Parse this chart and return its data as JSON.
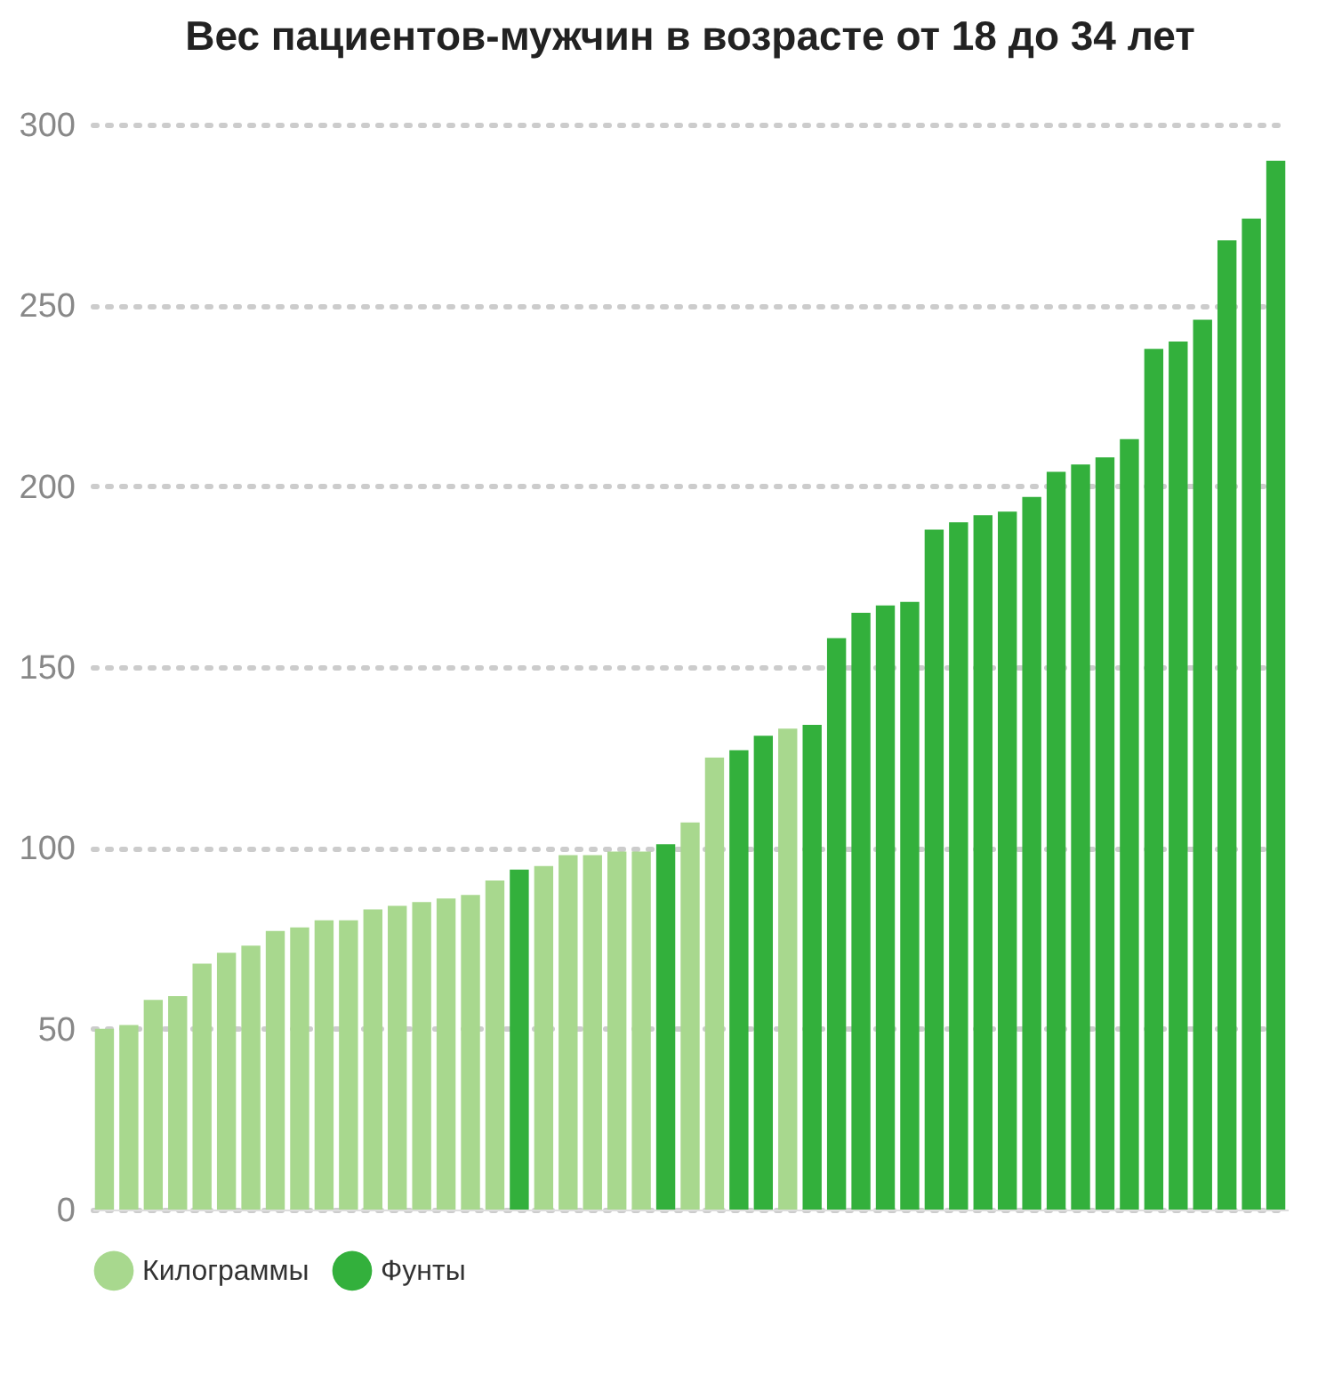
{
  "chart_data": {
    "type": "bar",
    "title": "Вес пациентов-мужчин в возрасте от 18 до 34 лет",
    "categories": [
      null,
      null,
      null,
      null,
      null,
      null,
      null,
      null,
      null,
      null,
      null,
      null,
      null,
      null,
      null,
      null,
      null,
      null,
      null,
      null,
      null,
      null,
      null,
      null,
      null,
      null,
      null,
      null,
      null,
      null,
      null,
      null,
      null,
      null,
      null,
      null,
      null,
      null,
      null,
      null,
      null,
      null,
      null,
      null,
      null,
      null,
      null,
      null,
      null
    ],
    "series": [
      {
        "name": "Килограммы",
        "color": "#a8d88e",
        "values": [
          50,
          51,
          58,
          59,
          68,
          71,
          73,
          77,
          78,
          80,
          80,
          83,
          84,
          85,
          86,
          87,
          91,
          null,
          95,
          98,
          98,
          99,
          99,
          null,
          107,
          125,
          null,
          null,
          133,
          null,
          null,
          null,
          null,
          null,
          null,
          null,
          null,
          null,
          null,
          null,
          null,
          null,
          null,
          null,
          null,
          null,
          null,
          null,
          null
        ]
      },
      {
        "name": "Фунты",
        "color": "#33b03c",
        "values": [
          null,
          null,
          null,
          null,
          null,
          null,
          null,
          null,
          null,
          null,
          null,
          null,
          null,
          null,
          null,
          null,
          null,
          94,
          null,
          null,
          null,
          null,
          null,
          101,
          null,
          null,
          127,
          131,
          null,
          134,
          158,
          165,
          167,
          168,
          188,
          190,
          192,
          193,
          197,
          204,
          206,
          208,
          213,
          238,
          240,
          246,
          268,
          274,
          290
        ]
      }
    ],
    "ylim": [
      0,
      300
    ],
    "yticks": [
      0,
      50,
      100,
      150,
      200,
      250,
      300
    ],
    "grid": "y",
    "legend": "bottom",
    "tick_labels": "y"
  }
}
